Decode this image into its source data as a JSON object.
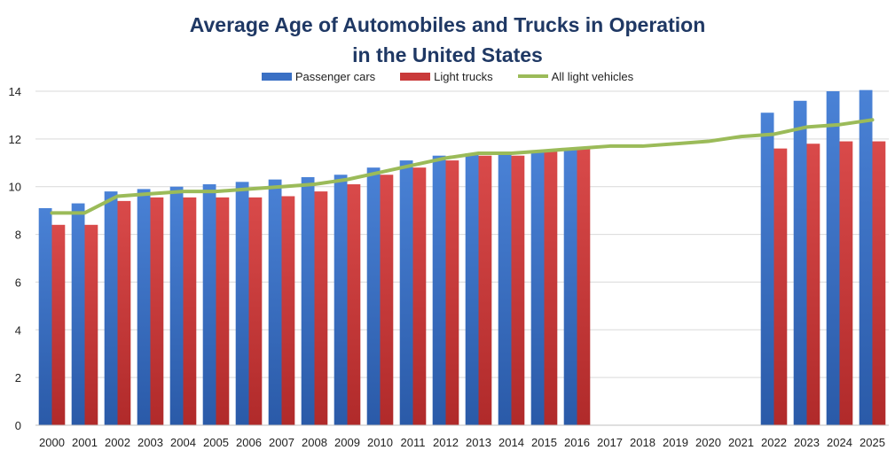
{
  "chart_data": {
    "type": "bar",
    "title_line1": "Average Age of Automobiles and Trucks in Operation",
    "title_line2": "in the United States",
    "xlabel": "",
    "ylabel": "",
    "ylim": [
      0,
      14
    ],
    "yticks": [
      0,
      2,
      4,
      6,
      8,
      10,
      12,
      14
    ],
    "grid": true,
    "legend_position": "top-center",
    "categories": [
      "2000",
      "2001",
      "2002",
      "2003",
      "2004",
      "2005",
      "2006",
      "2007",
      "2008",
      "2009",
      "2010",
      "2011",
      "2012",
      "2013",
      "2014",
      "2015",
      "2016",
      "2017",
      "2018",
      "2019",
      "2020",
      "2021",
      "2022",
      "2023",
      "2024",
      "2025"
    ],
    "series": [
      {
        "name": "Passenger cars",
        "type": "bar",
        "color": "#3a70c4",
        "values": [
          9.1,
          9.3,
          9.8,
          9.9,
          10.0,
          10.1,
          10.2,
          10.3,
          10.4,
          10.5,
          10.8,
          11.1,
          11.3,
          11.4,
          11.4,
          11.5,
          11.6,
          null,
          null,
          null,
          null,
          null,
          13.1,
          13.6,
          14.0,
          14.05
        ]
      },
      {
        "name": "Light trucks",
        "type": "bar",
        "color": "#c93a3a",
        "values": [
          8.4,
          8.4,
          9.4,
          9.55,
          9.55,
          9.55,
          9.55,
          9.6,
          9.8,
          10.1,
          10.5,
          10.8,
          11.1,
          11.3,
          11.3,
          11.5,
          11.6,
          null,
          null,
          null,
          null,
          null,
          11.6,
          11.8,
          11.9,
          11.9
        ]
      },
      {
        "name": "All light vehicles",
        "type": "line",
        "color": "#9bbb59",
        "values": [
          8.9,
          8.9,
          9.6,
          9.7,
          9.8,
          9.8,
          9.9,
          10.0,
          10.1,
          10.3,
          10.6,
          10.9,
          11.2,
          11.4,
          11.4,
          11.5,
          11.6,
          11.7,
          11.7,
          11.8,
          11.9,
          12.1,
          12.2,
          12.5,
          12.6,
          12.8
        ]
      }
    ]
  }
}
